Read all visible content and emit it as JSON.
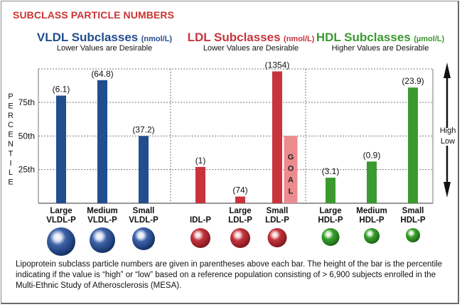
{
  "title": "SUBCLASS PARTICLE NUMBERS",
  "groups": [
    {
      "name": "VLDL Subclasses",
      "unit": "(nmol/L)",
      "subtitle": "Lower Values are Desirable",
      "color": "#224e8f"
    },
    {
      "name": "LDL Subclasses",
      "unit": "(nmol/L)",
      "subtitle": "Lower Values are Desirable",
      "color": "#c8343c"
    },
    {
      "name": "HDL Subclasses",
      "unit": "(µmol/L)",
      "subtitle": "Higher Values are Desirable",
      "color": "#3b9a2f"
    }
  ],
  "y_axis_label": "PERCENTILE",
  "high_label": "High",
  "low_label": "Low",
  "goal_label": "GOAL",
  "footnote": "Lipoprotein subclass particle numbers are given in parentheses above each bar. The height of the bar is the percentile indicating if the value is “high” or “low” based on a reference population consisting of > 6,900 subjects enrolled in the Multi-Ethnic Study of Atherosclerosis (MESA).",
  "chart_data": {
    "type": "bar",
    "title": "SUBCLASS PARTICLE NUMBERS",
    "xlabel": "",
    "ylabel": "PERCENTILE",
    "ylim": [
      0,
      100
    ],
    "yticks": [
      25,
      50,
      75
    ],
    "ytick_labels": [
      "25th",
      "50th",
      "75th"
    ],
    "grid": true,
    "categories": [
      {
        "line1": "Large",
        "line2": "VLDL-P",
        "group": 0,
        "percentile": 80,
        "value_label": "(6.1)",
        "particle_size": 3
      },
      {
        "line1": "Medium",
        "line2": "VLDL-P",
        "group": 0,
        "percentile": 91.5,
        "value_label": "(64.8)",
        "particle_size": 2.6
      },
      {
        "line1": "Small",
        "line2": "VLDL-P",
        "group": 0,
        "percentile": 50,
        "value_label": "(37.2)",
        "particle_size": 2.2
      },
      {
        "line1": "",
        "line2": "IDL-P",
        "group": 1,
        "percentile": 27,
        "value_label": "(1)",
        "particle_size": 1.8
      },
      {
        "line1": "Large",
        "line2": "LDL-P",
        "group": 1,
        "percentile": 5,
        "value_label": "(74)",
        "particle_size": 1.8
      },
      {
        "line1": "Small",
        "line2": "LDL-P",
        "group": 1,
        "percentile": 98,
        "value_label": "(1354)",
        "particle_size": 1.7
      },
      {
        "line1": "Large",
        "line2": "HDL-P",
        "group": 2,
        "percentile": 19,
        "value_label": "(3.1)",
        "particle_size": 1.5
      },
      {
        "line1": "Medium",
        "line2": "HDL-P",
        "group": 2,
        "percentile": 31,
        "value_label": "(0.9)",
        "particle_size": 1.2
      },
      {
        "line1": "Small",
        "line2": "HDL-P",
        "group": 2,
        "percentile": 86,
        "value_label": "(23.9)",
        "particle_size": 1.0
      }
    ],
    "goal": {
      "category_index": 5,
      "percentile": 50,
      "label": "GOAL",
      "color": "#ec8b8e"
    }
  }
}
